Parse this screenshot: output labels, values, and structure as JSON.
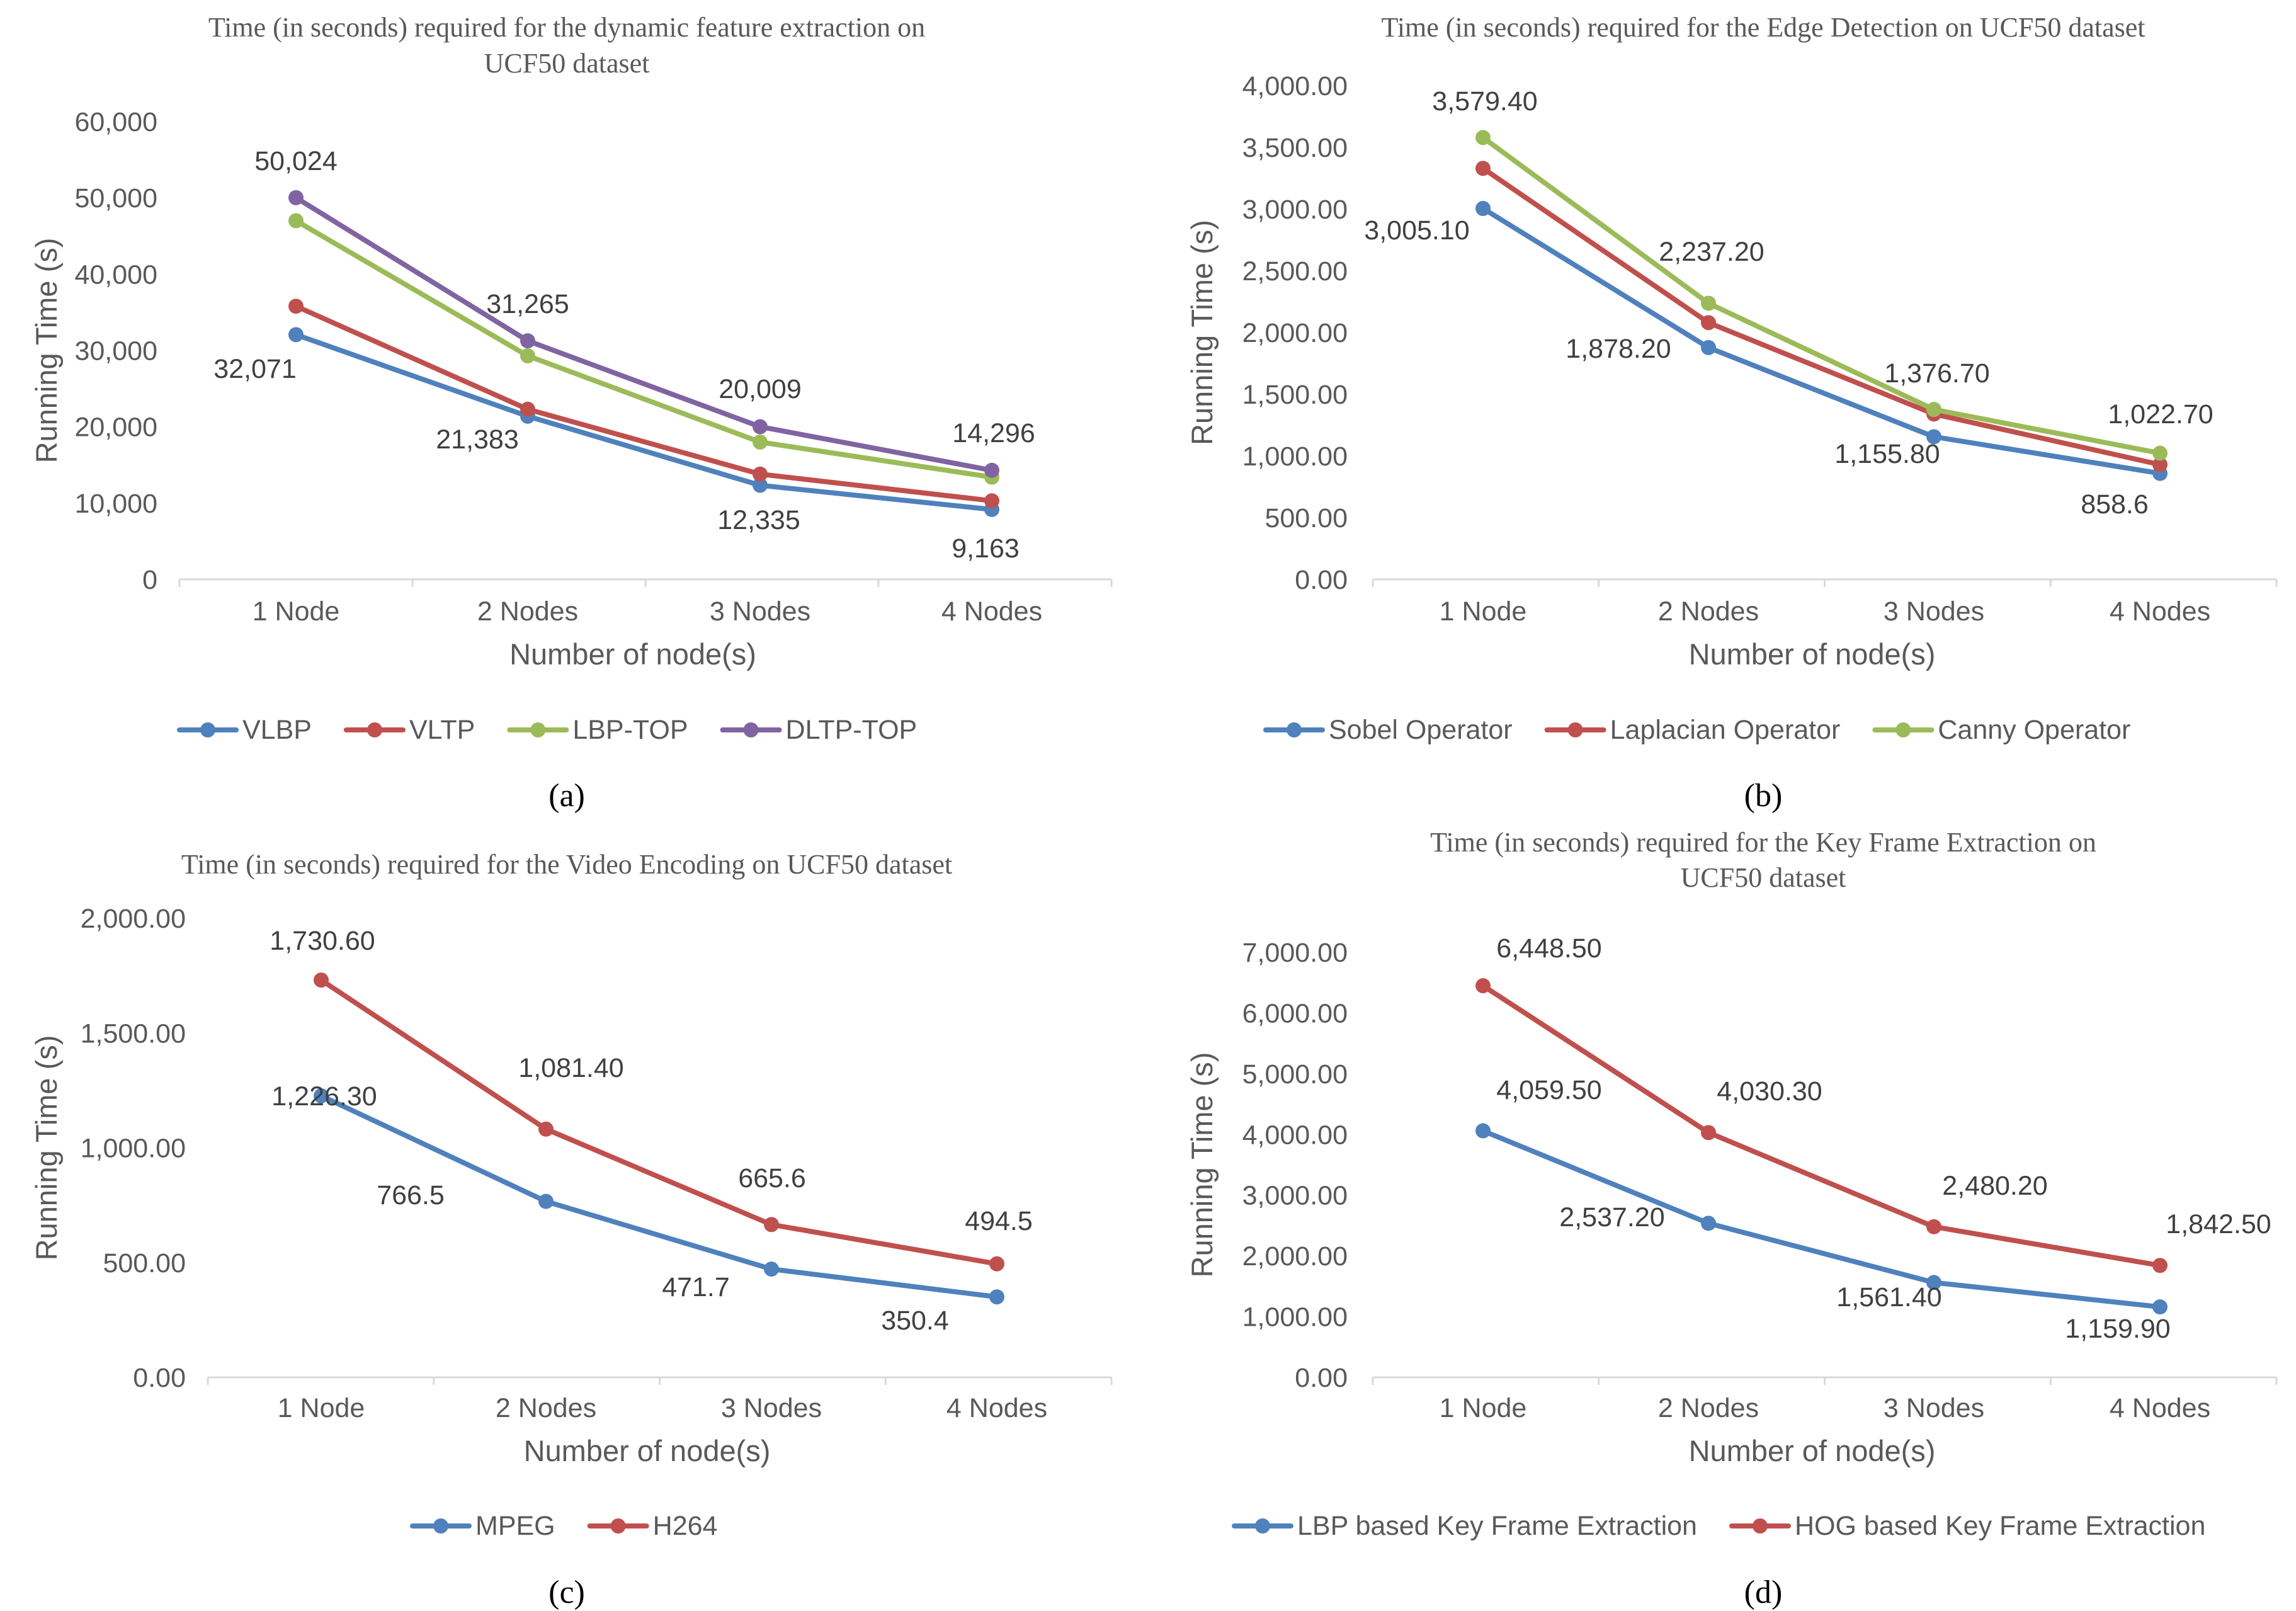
{
  "chart_data": [
    {
      "type": "line",
      "caption": "(a)",
      "title": "Time (in seconds) required for the dynamic feature extraction on UCF50 dataset",
      "title_lines": [
        "Time (in seconds) required for the dynamic feature extraction on",
        "UCF50 dataset"
      ],
      "xlabel": "Number of node(s)",
      "ylabel": "Running Time (s)",
      "categories": [
        "1 Node",
        "2 Nodes",
        "3 Nodes",
        "4 Nodes"
      ],
      "ylim": [
        0,
        60000
      ],
      "yticks": [
        0,
        10000,
        20000,
        30000,
        40000,
        50000,
        60000
      ],
      "ytick_labels": [
        "0",
        "10,000",
        "20,000",
        "30,000",
        "40,000",
        "50,000",
        "60,000"
      ],
      "grid": false,
      "legend": "bottom",
      "series": [
        {
          "name": "VLBP",
          "color": "#4f81bd",
          "values": [
            32071,
            21383,
            12335,
            9163
          ],
          "labels": [
            "32,071",
            "21,383",
            "12,335",
            "9,163"
          ]
        },
        {
          "name": "VLTP",
          "color": "#c0504d",
          "values": [
            35800,
            22300,
            13800,
            10300
          ],
          "labels": [
            "",
            "",
            "",
            ""
          ]
        },
        {
          "name": "LBP-TOP",
          "color": "#9bbb59",
          "values": [
            47000,
            29300,
            18000,
            13400
          ],
          "labels": [
            "",
            "",
            "",
            ""
          ]
        },
        {
          "name": "DLTP-TOP",
          "color": "#8064a2",
          "values": [
            50024,
            31265,
            20009,
            14296
          ],
          "labels": [
            "50,024",
            "31,265",
            "20,009",
            "14,296"
          ]
        }
      ]
    },
    {
      "type": "line",
      "caption": "(b)",
      "title": "Time (in seconds) required for the Edge Detection on UCF50 dataset",
      "title_lines": [
        "Time (in seconds) required for the Edge Detection on UCF50 dataset"
      ],
      "xlabel": "Number of node(s)",
      "ylabel": "Running Time (s)",
      "categories": [
        "1 Node",
        "2 Nodes",
        "3 Nodes",
        "4 Nodes"
      ],
      "ylim": [
        0,
        4000
      ],
      "yticks": [
        0,
        500,
        1000,
        1500,
        2000,
        2500,
        3000,
        3500,
        4000
      ],
      "ytick_labels": [
        "0.00",
        "500.00",
        "1,000.00",
        "1,500.00",
        "2,000.00",
        "2,500.00",
        "3,000.00",
        "3,500.00",
        "4,000.00"
      ],
      "grid": false,
      "legend": "bottom",
      "series": [
        {
          "name": "Sobel Operator",
          "color": "#4f81bd",
          "values": [
            3005.1,
            1878.2,
            1155.8,
            858.6
          ],
          "labels": [
            "3,005.10",
            "1,878.20",
            "1,155.80",
            "858.6"
          ]
        },
        {
          "name": "Laplacian Operator",
          "color": "#c0504d",
          "values": [
            3330,
            2080,
            1340,
            930
          ],
          "labels": [
            "",
            "",
            "",
            ""
          ]
        },
        {
          "name": "Canny Operator",
          "color": "#9bbb59",
          "values": [
            3579.4,
            2237.2,
            1376.7,
            1022.7
          ],
          "labels": [
            "3,579.40",
            "2,237.20",
            "1,376.70",
            "1,022.70"
          ]
        }
      ]
    },
    {
      "type": "line",
      "caption": "(c)",
      "title": "Time (in seconds) required for the Video Encoding on UCF50 dataset",
      "title_lines": [
        "Time (in seconds) required for the Video Encoding on UCF50 dataset"
      ],
      "xlabel": "Number of node(s)",
      "ylabel": "Running Time (s)",
      "categories": [
        "1 Node",
        "2 Nodes",
        "3 Nodes",
        "4 Nodes"
      ],
      "ylim": [
        0,
        2000
      ],
      "yticks": [
        0,
        500,
        1000,
        1500,
        2000
      ],
      "ytick_labels": [
        "0.00",
        "500.00",
        "1,000.00",
        "1,500.00",
        "2,000.00"
      ],
      "grid": false,
      "legend": "bottom",
      "series": [
        {
          "name": "MPEG",
          "color": "#4f81bd",
          "values": [
            1226.3,
            766.5,
            471.7,
            350.4
          ],
          "labels": [
            "1,226.30",
            "766.5",
            "471.7",
            "350.4"
          ]
        },
        {
          "name": "H264",
          "color": "#c0504d",
          "values": [
            1730.6,
            1081.4,
            665.6,
            494.5
          ],
          "labels": [
            "1,730.60",
            "1,081.40",
            "665.6",
            "494.5"
          ]
        }
      ]
    },
    {
      "type": "line",
      "caption": "(d)",
      "title": "Time (in seconds) required for the Key Frame Extraction on UCF50 dataset",
      "title_lines": [
        "Time (in seconds) required for the Key Frame Extraction on",
        "UCF50 dataset"
      ],
      "xlabel": "Number of node(s)",
      "ylabel": "Running Time (s)",
      "categories": [
        "1 Node",
        "2 Nodes",
        "3 Nodes",
        "4 Nodes"
      ],
      "ylim": [
        0,
        7000
      ],
      "yticks": [
        0,
        1000,
        2000,
        3000,
        4000,
        5000,
        6000,
        7000
      ],
      "ytick_labels": [
        "0.00",
        "1,000.00",
        "2,000.00",
        "3,000.00",
        "4,000.00",
        "5,000.00",
        "6,000.00",
        "7,000.00"
      ],
      "grid": false,
      "legend": "bottom",
      "series": [
        {
          "name": "LBP based Key Frame Extraction",
          "color": "#4f81bd",
          "values": [
            4059.5,
            2537.2,
            1561.4,
            1159.9
          ],
          "labels": [
            "4,059.50",
            "2,537.20",
            "1,561.40",
            "1,159.90"
          ]
        },
        {
          "name": "HOG based Key Frame Extraction",
          "color": "#c0504d",
          "values": [
            6448.5,
            4030.3,
            2480.2,
            1842.5
          ],
          "labels": [
            "6,448.50",
            "4,030.30",
            "2,480.20",
            "1,842.50"
          ]
        }
      ]
    }
  ]
}
